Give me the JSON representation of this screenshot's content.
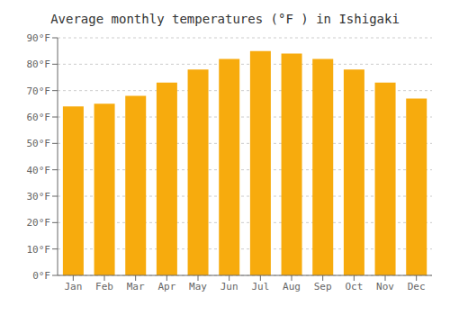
{
  "chart_data": {
    "type": "bar",
    "title": "Average monthly temperatures (°F ) in Ishigaki",
    "categories": [
      "Jan",
      "Feb",
      "Mar",
      "Apr",
      "May",
      "Jun",
      "Jul",
      "Aug",
      "Sep",
      "Oct",
      "Nov",
      "Dec"
    ],
    "values": [
      64,
      65,
      68,
      73,
      78,
      82,
      85,
      84,
      82,
      78,
      73,
      67
    ],
    "color": "#f7ab0d",
    "ylim": [
      0,
      90
    ],
    "yticks": [
      {
        "value": 0,
        "label": "0°F"
      },
      {
        "value": 10,
        "label": "10°F"
      },
      {
        "value": 20,
        "label": "20°F"
      },
      {
        "value": 30,
        "label": "30°F"
      },
      {
        "value": 40,
        "label": "40°F"
      },
      {
        "value": 50,
        "label": "50°F"
      },
      {
        "value": 60,
        "label": "60°F"
      },
      {
        "value": 70,
        "label": "70°F"
      },
      {
        "value": 80,
        "label": "80°F"
      },
      {
        "value": 90,
        "label": "90°F"
      }
    ],
    "grid": true
  }
}
